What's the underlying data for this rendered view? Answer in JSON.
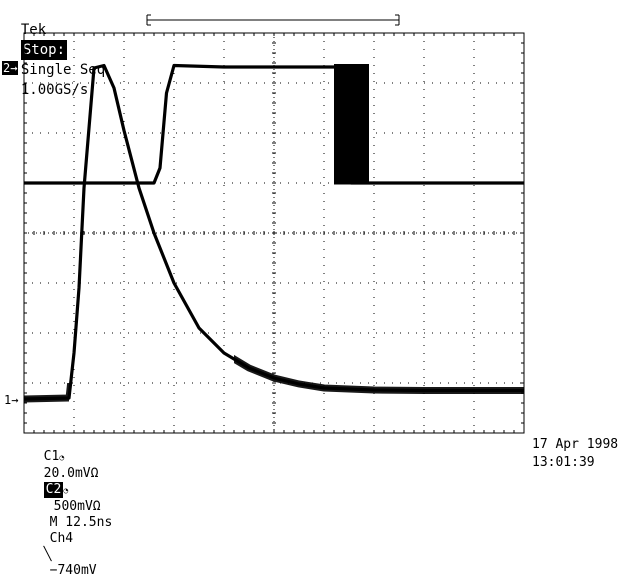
{
  "header": {
    "brand": "Tek",
    "state": "Stop:",
    "mode": "Single Seq",
    "rate": "1.00GS/s"
  },
  "markers": {
    "ch2": "2→",
    "ch1": "1→"
  },
  "footer": {
    "ch1_label": "C1",
    "ch1_scale": "20.0mVΩ",
    "ch2_label": "C2",
    "ch2_scale": "500mVΩ",
    "timebase": "M 12.5ns",
    "trigger_src": "Ch4",
    "trigger_slope_icon": "falling-edge-icon",
    "trigger_level": "−740mV"
  },
  "datetime": {
    "date": "17 Apr 1998",
    "time": "13:01:39"
  },
  "chart_data": {
    "type": "line",
    "grid": {
      "x_divisions": 10,
      "y_divisions": 8
    },
    "x_unit": "div",
    "y_unit": "div",
    "series": [
      {
        "channel": 1,
        "x": [
          0,
          0.9,
          1.0,
          1.1,
          1.2,
          1.4,
          1.6,
          1.8,
          2.0,
          2.3,
          2.6,
          3.0,
          3.5,
          4.0,
          4.5,
          5.0,
          5.5,
          6.0,
          7.0,
          8.0,
          9.0,
          10.0
        ],
        "y": [
          0.68,
          0.7,
          1.6,
          2.9,
          4.9,
          7.3,
          7.35,
          6.9,
          6.05,
          4.9,
          4.0,
          3.0,
          2.1,
          1.6,
          1.3,
          1.1,
          0.98,
          0.9,
          0.86,
          0.85,
          0.85,
          0.85
        ],
        "color": "#000000"
      },
      {
        "channel": 2,
        "x": [
          0,
          2.6,
          2.72,
          2.85,
          3.0,
          4.0,
          5.0,
          6.0,
          6.3,
          6.42,
          6.55,
          7.0,
          8.0,
          9.0,
          10.0
        ],
        "y": [
          5.0,
          5.0,
          5.3,
          6.8,
          7.35,
          7.32,
          7.32,
          7.32,
          7.32,
          6.1,
          5.0,
          5.0,
          5.0,
          5.0,
          5.0
        ],
        "color": "#000000"
      }
    ],
    "ch2_jitter_band": {
      "x_from": 6.2,
      "x_to": 6.9
    },
    "ch1_noise_band": true
  }
}
